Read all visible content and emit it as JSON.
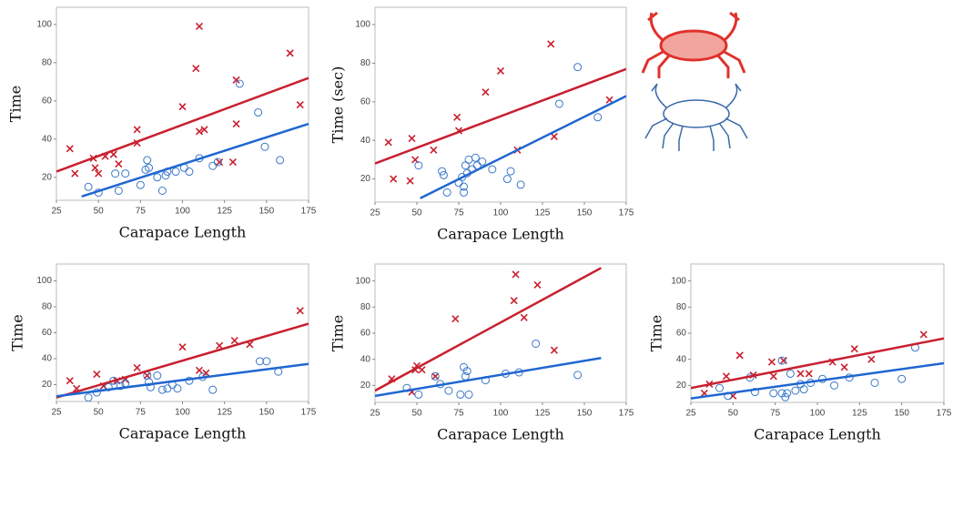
{
  "chart_data": [
    {
      "type": "scatter",
      "xlabel": "Carapace Length",
      "ylabel": "Time",
      "xlim": [
        25,
        175
      ],
      "ylim": [
        8,
        109
      ],
      "xticks": [
        25,
        50,
        75,
        100,
        125,
        150,
        175
      ],
      "yticks": [
        20,
        40,
        60,
        80,
        100
      ],
      "series": [
        {
          "color": "#c8202f",
          "marker": "x",
          "x": [
            33,
            36,
            47,
            48,
            50,
            54,
            59,
            62,
            73,
            73,
            100,
            108,
            110,
            110,
            113,
            122,
            130,
            132,
            132,
            164,
            170
          ],
          "values": [
            35,
            22,
            30,
            25,
            22,
            31,
            32,
            27,
            45,
            38,
            57,
            77,
            99,
            44,
            45,
            28,
            28,
            71,
            48,
            85,
            58
          ]
        },
        {
          "color": "#3a78c9",
          "marker": "circle",
          "x": [
            44,
            50,
            60,
            62,
            66,
            75,
            78,
            79,
            80,
            85,
            88,
            90,
            91,
            96,
            101,
            104,
            110,
            118,
            121,
            134,
            145,
            149,
            158
          ],
          "values": [
            15,
            12,
            22,
            13,
            22,
            16,
            24,
            29,
            25,
            20,
            13,
            21,
            23,
            23,
            25,
            23,
            30,
            26,
            28,
            69,
            54,
            36,
            29
          ]
        },
        {
          "color": "#c8202f",
          "marker": "line",
          "x": [
            25,
            175
          ],
          "values": [
            23,
            72
          ]
        },
        {
          "color": "#1f66d1",
          "marker": "line",
          "x": [
            40,
            175
          ],
          "values": [
            10,
            48
          ]
        }
      ]
    },
    {
      "type": "scatter",
      "xlabel": "Carapace Length",
      "ylabel": "Time (sec)",
      "xlim": [
        25,
        175
      ],
      "ylim": [
        8,
        109
      ],
      "xticks": [
        25,
        50,
        75,
        100,
        125,
        150,
        175
      ],
      "yticks": [
        20,
        40,
        60,
        80,
        100
      ],
      "series": [
        {
          "color": "#c8202f",
          "marker": "x",
          "x": [
            33,
            36,
            46,
            47,
            49,
            60,
            74,
            75,
            91,
            100,
            110,
            130,
            132,
            165
          ],
          "values": [
            39,
            20,
            19,
            41,
            30,
            35,
            52,
            45,
            65,
            76,
            35,
            90,
            42,
            61
          ]
        },
        {
          "color": "#3a78c9",
          "marker": "circle",
          "x": [
            51,
            65,
            66,
            68,
            75,
            77,
            78,
            78,
            79,
            80,
            81,
            83,
            85,
            86,
            89,
            95,
            104,
            106,
            112,
            135,
            146,
            158
          ],
          "values": [
            27,
            24,
            22,
            13,
            18,
            21,
            13,
            16,
            27,
            23,
            30,
            25,
            31,
            27,
            29,
            25,
            20,
            24,
            17,
            59,
            78,
            52
          ]
        },
        {
          "color": "#c8202f",
          "marker": "line",
          "x": [
            25,
            175
          ],
          "values": [
            28,
            77
          ]
        },
        {
          "color": "#1f66d1",
          "marker": "line",
          "x": [
            52,
            175
          ],
          "values": [
            10,
            63
          ]
        }
      ]
    },
    {
      "type": "scatter",
      "xlabel": "Carapace Length",
      "ylabel": "Time",
      "xlim": [
        25,
        175
      ],
      "ylim": [
        7,
        113
      ],
      "xticks": [
        25,
        50,
        75,
        100,
        125,
        150,
        175
      ],
      "yticks": [
        20,
        40,
        60,
        80,
        100
      ],
      "series": [
        {
          "color": "#c8202f",
          "marker": "x",
          "x": [
            33,
            37,
            49,
            53,
            61,
            66,
            73,
            79,
            100,
            110,
            114,
            122,
            131,
            140,
            170
          ],
          "values": [
            23,
            17,
            28,
            19,
            23,
            24,
            33,
            27,
            49,
            31,
            29,
            50,
            54,
            51,
            77
          ]
        },
        {
          "color": "#3a78c9",
          "marker": "circle",
          "x": [
            44,
            49,
            56,
            59,
            63,
            66,
            79,
            80,
            81,
            85,
            88,
            91,
            94,
            97,
            104,
            112,
            118,
            146,
            150,
            157
          ],
          "values": [
            10,
            14,
            18,
            23,
            19,
            21,
            27,
            22,
            18,
            27,
            16,
            17,
            20,
            17,
            23,
            26,
            16,
            38,
            38,
            30
          ]
        },
        {
          "color": "#c8202f",
          "marker": "line",
          "x": [
            25,
            175
          ],
          "values": [
            10,
            67
          ]
        },
        {
          "color": "#1f66d1",
          "marker": "line",
          "x": [
            25,
            175
          ],
          "values": [
            11,
            36
          ]
        }
      ]
    },
    {
      "type": "scatter",
      "xlabel": "Carapace Length",
      "ylabel": "Time",
      "xlim": [
        25,
        175
      ],
      "ylim": [
        7,
        113
      ],
      "xticks": [
        25,
        50,
        75,
        100,
        125,
        150,
        175
      ],
      "yticks": [
        20,
        40,
        60,
        80,
        100
      ],
      "series": [
        {
          "color": "#c8202f",
          "marker": "x",
          "x": [
            35,
            47,
            49,
            50,
            53,
            61,
            73,
            108,
            109,
            114,
            122,
            132
          ],
          "values": [
            25,
            15,
            32,
            35,
            32,
            27,
            71,
            85,
            105,
            72,
            97,
            47
          ]
        },
        {
          "color": "#3a78c9",
          "marker": "circle",
          "x": [
            44,
            51,
            61,
            64,
            69,
            76,
            78,
            79,
            81,
            80,
            91,
            103,
            111,
            121,
            146
          ],
          "values": [
            18,
            13,
            27,
            21,
            16,
            13,
            34,
            27,
            13,
            31,
            24,
            29,
            30,
            52,
            28
          ]
        },
        {
          "color": "#c8202f",
          "marker": "line",
          "x": [
            25,
            160
          ],
          "values": [
            16,
            110
          ]
        },
        {
          "color": "#1f66d1",
          "marker": "line",
          "x": [
            25,
            160
          ],
          "values": [
            12,
            41
          ]
        }
      ]
    },
    {
      "type": "scatter",
      "xlabel": "Carapace Length",
      "ylabel": "Time",
      "xlim": [
        25,
        175
      ],
      "ylim": [
        7,
        113
      ],
      "xticks": [
        25,
        50,
        75,
        100,
        125,
        150,
        175
      ],
      "yticks": [
        20,
        40,
        60,
        80,
        100
      ],
      "series": [
        {
          "color": "#c8202f",
          "marker": "x",
          "x": [
            33,
            36,
            46,
            50,
            54,
            62,
            73,
            74,
            80,
            90,
            95,
            109,
            116,
            122,
            132,
            163
          ],
          "values": [
            14,
            21,
            27,
            12,
            43,
            28,
            38,
            27,
            39,
            29,
            29,
            38,
            34,
            48,
            40,
            59
          ]
        },
        {
          "color": "#3a78c9",
          "marker": "circle",
          "x": [
            42,
            47,
            60,
            63,
            74,
            79,
            79,
            81,
            82,
            84,
            87,
            90,
            92,
            96,
            103,
            110,
            119,
            134,
            150,
            158
          ],
          "values": [
            18,
            12,
            26,
            15,
            14,
            14,
            39,
            11,
            14,
            29,
            16,
            21,
            17,
            22,
            25,
            20,
            26,
            22,
            25,
            49
          ]
        },
        {
          "color": "#c8202f",
          "marker": "line",
          "x": [
            25,
            175
          ],
          "values": [
            18,
            56
          ]
        },
        {
          "color": "#1f66d1",
          "marker": "line",
          "x": [
            25,
            175
          ],
          "values": [
            10,
            37
          ]
        }
      ]
    }
  ]
}
